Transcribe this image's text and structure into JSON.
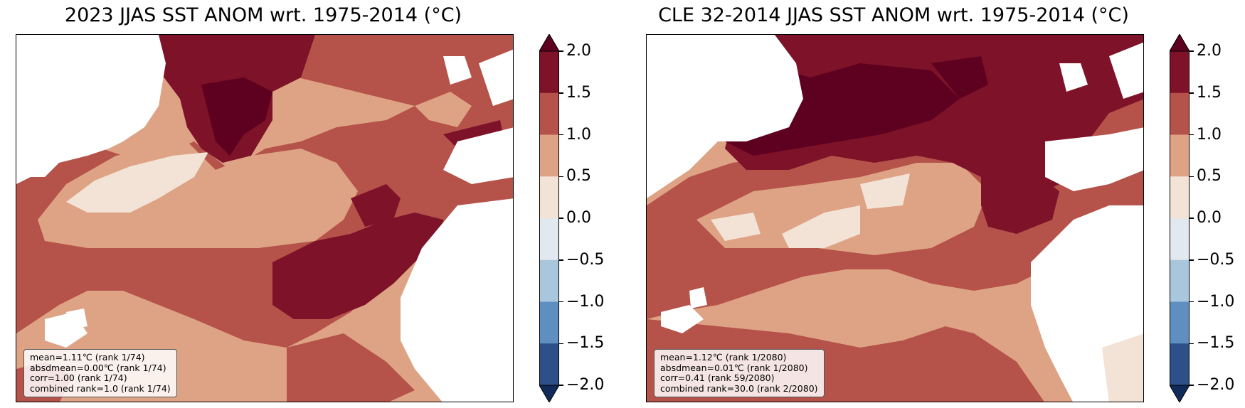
{
  "panels": [
    {
      "title": "2023 JJAS SST ANOM wrt. 1975-2014 (°C)",
      "stats": [
        "mean=1.11℃ (rank 1/74)",
        "absdmean=0.00℃ (rank 1/74)",
        "corr=1.00 (rank 1/74)",
        "combined rank=1.0 (rank 1/74)"
      ]
    },
    {
      "title": "CLE 32-2014 JJAS SST ANOM wrt. 1975-2014 (°C)",
      "stats": [
        "mean=1.12℃ (rank 1/2080)",
        "absdmean=0.01℃ (rank 1/2080)",
        "corr=0.41 (rank 59/2080)",
        "combined rank=30.0 (rank 2/2080)"
      ]
    }
  ],
  "colorbar": {
    "levels": [
      "2.0",
      "1.5",
      "1.0",
      "0.5",
      "0.0",
      "−0.5",
      "−1.0",
      "−1.5",
      "−2.0"
    ],
    "colors": [
      "#5e0020",
      "#7d1228",
      "#b5524a",
      "#dea385",
      "#f3e2d6",
      "#e1e8ef",
      "#a9c7dc",
      "#5f8fc0",
      "#2d5088",
      "#102b5a"
    ]
  }
}
